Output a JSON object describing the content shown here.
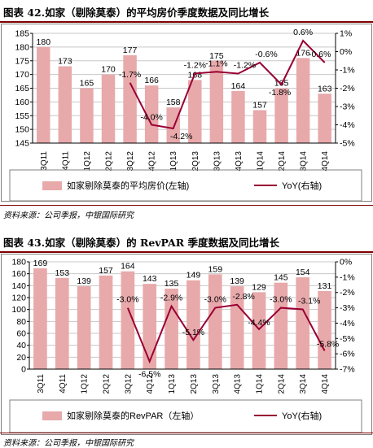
{
  "figures": [
    {
      "title": "图表 42.如家（剔除莫泰）的平均房价季度数据及同比增长",
      "source": "资料来源：公司季报，中银国际研究",
      "chart_data": {
        "type": "bar",
        "categories": [
          "3Q11",
          "4Q11",
          "1Q12",
          "2Q12",
          "3Q12",
          "4Q12",
          "1Q13",
          "2Q13",
          "3Q13",
          "4Q13",
          "1Q14",
          "2Q14",
          "3Q14",
          "4Q14"
        ],
        "series": [
          {
            "name": "如家剔除莫泰的平均房价(左轴)",
            "type": "bar",
            "axis": "left",
            "values": [
              180,
              173,
              165,
              170,
              177,
              166,
              158,
              168,
              175,
              164,
              157,
              165,
              176,
              163
            ],
            "labels": [
              "180",
              "173",
              "165",
              "170",
              "177",
              "166",
              "158",
              "168",
              "175",
              "164",
              "157",
              "165",
              "176",
              "163"
            ]
          },
          {
            "name": "YoY(右轴)",
            "type": "line",
            "axis": "right",
            "values": [
              null,
              null,
              null,
              null,
              -1.7,
              -4.0,
              -4.2,
              -1.2,
              -1.1,
              -1.2,
              -0.6,
              -1.8,
              0.6,
              -0.6
            ],
            "labels": [
              null,
              null,
              null,
              null,
              "-1.7%",
              "-4.0%",
              "-4.2%",
              "-1.2%",
              "-1.1%",
              "-1.2%",
              "-0.6%",
              "-1.8%",
              "0.6%",
              "-0.6%"
            ]
          }
        ],
        "ylim_left": [
          145,
          185
        ],
        "yticks_left": [
          "145",
          "150",
          "155",
          "160",
          "165",
          "170",
          "175",
          "180",
          "185"
        ],
        "ylim_right": [
          -5,
          1
        ],
        "yticks_right": [
          "-5%",
          "-4%",
          "-3%",
          "-2%",
          "-1%",
          "0%",
          "1%"
        ],
        "bar_color": "#e8a9ab",
        "line_color": "#990033",
        "grid": true,
        "legend_position": "bottom"
      }
    },
    {
      "title": "图表 43.如家（剔除莫泰）的 RevPAR 季度数据及同比增长",
      "source": "资料来源：公司季报，中银国际研究",
      "chart_data": {
        "type": "bar",
        "categories": [
          "3Q11",
          "4Q11",
          "1Q12",
          "2Q12",
          "3Q12",
          "4Q12",
          "1Q13",
          "2Q13",
          "3Q13",
          "4Q13",
          "1Q14",
          "2Q14",
          "3Q14",
          "4Q14"
        ],
        "series": [
          {
            "name": "如家剔除莫泰的RevPAR（左轴）",
            "type": "bar",
            "axis": "left",
            "values": [
              169,
              153,
              139,
              157,
              164,
              143,
              135,
              149,
              159,
              139,
              129,
              145,
              154,
              131
            ],
            "labels": [
              "169",
              "153",
              "139",
              "157",
              "164",
              "143",
              "135",
              "149",
              "159",
              "139",
              "129",
              "145",
              "154",
              "131"
            ]
          },
          {
            "name": "YoY(右轴)",
            "type": "line",
            "axis": "right",
            "values": [
              null,
              null,
              null,
              null,
              -3.0,
              -6.5,
              -2.9,
              -5.1,
              -3.0,
              -2.8,
              -4.4,
              -3.0,
              -3.1,
              -5.8
            ],
            "labels": [
              null,
              null,
              null,
              null,
              "-3.0%",
              "-6.5%",
              "-2.9%",
              "-5.1%",
              "-3.0%",
              "-2.8%",
              "-4.4%",
              "-3.0%",
              "-3.1%",
              "-5.8%"
            ]
          }
        ],
        "ylim_left": [
          0,
          180
        ],
        "yticks_left": [
          "0",
          "20",
          "40",
          "60",
          "80",
          "100",
          "120",
          "140",
          "160",
          "180"
        ],
        "ylim_right": [
          -7,
          0
        ],
        "yticks_right": [
          "-7%",
          "-6%",
          "-5%",
          "-4%",
          "-3%",
          "-2%",
          "-1%",
          "0%"
        ],
        "bar_color": "#e8a9ab",
        "line_color": "#990033",
        "grid": true,
        "legend_position": "bottom"
      }
    }
  ]
}
